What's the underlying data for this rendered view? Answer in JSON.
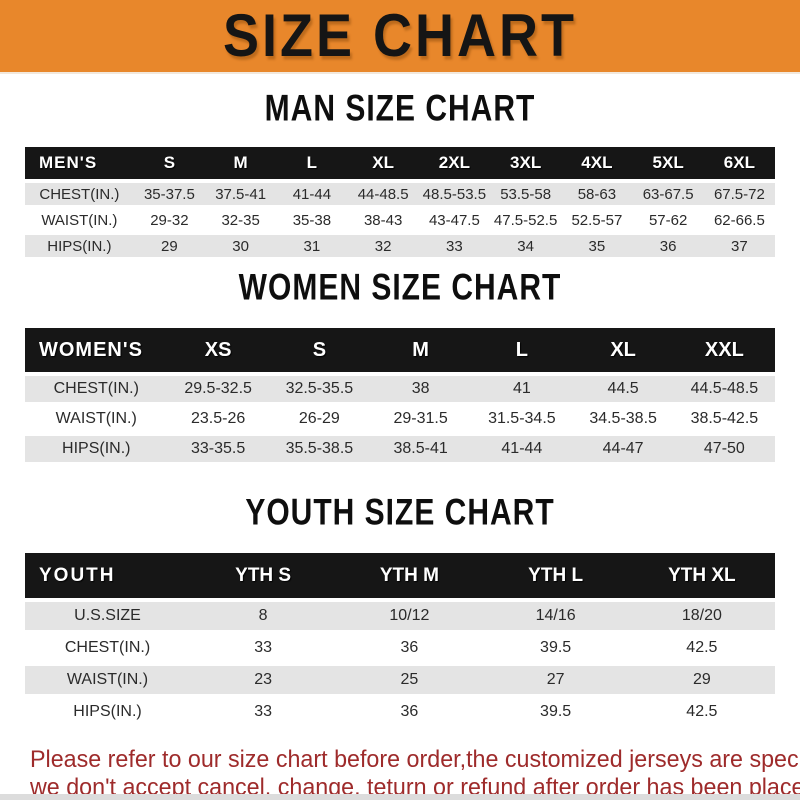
{
  "banner": {
    "title": "SIZE CHART",
    "bg_color": "#E8872B",
    "text_color": "#151515"
  },
  "colors": {
    "header_bar": "#161616",
    "row_gray": "#E4E4E4",
    "row_white": "#FFFFFF",
    "footer_red": "#9E2B2B"
  },
  "sections": [
    {
      "id": "men",
      "heading": "MAN SIZE CHART",
      "group_label": "MEN'S",
      "columns": [
        "S",
        "M",
        "L",
        "XL",
        "2XL",
        "3XL",
        "4XL",
        "5XL",
        "6XL"
      ],
      "rows": [
        {
          "label": "CHEST(IN.)",
          "values": [
            "35-37.5",
            "37.5-41",
            "41-44",
            "44-48.5",
            "48.5-53.5",
            "53.5-58",
            "58-63",
            "63-67.5",
            "67.5-72"
          ]
        },
        {
          "label": "WAIST(IN.)",
          "values": [
            "29-32",
            "32-35",
            "35-38",
            "38-43",
            "43-47.5",
            "47.5-52.5",
            "52.5-57",
            "57-62",
            "62-66.5"
          ]
        },
        {
          "label": "HIPS(IN.)",
          "values": [
            "29",
            "30",
            "31",
            "32",
            "33",
            "34",
            "35",
            "36",
            "37"
          ]
        }
      ]
    },
    {
      "id": "women",
      "heading": "WOMEN SIZE CHART",
      "group_label": "WOMEN'S",
      "columns": [
        "XS",
        "S",
        "M",
        "L",
        "XL",
        "XXL"
      ],
      "rows": [
        {
          "label": "CHEST(IN.)",
          "values": [
            "29.5-32.5",
            "32.5-35.5",
            "38",
            "41",
            "44.5",
            "44.5-48.5"
          ]
        },
        {
          "label": "WAIST(IN.)",
          "values": [
            "23.5-26",
            "26-29",
            "29-31.5",
            "31.5-34.5",
            "34.5-38.5",
            "38.5-42.5"
          ]
        },
        {
          "label": "HIPS(IN.)",
          "values": [
            "33-35.5",
            "35.5-38.5",
            "38.5-41",
            "41-44",
            "44-47",
            "47-50"
          ]
        }
      ]
    },
    {
      "id": "youth",
      "heading": "YOUTH SIZE CHART",
      "group_label": "YOUTH",
      "columns": [
        "YTH S",
        "YTH M",
        "YTH L",
        "YTH XL"
      ],
      "rows": [
        {
          "label": "U.S.SIZE",
          "values": [
            "8",
            "10/12",
            "14/16",
            "18/20"
          ]
        },
        {
          "label": "CHEST(IN.)",
          "values": [
            "33",
            "36",
            "39.5",
            "42.5"
          ]
        },
        {
          "label": "WAIST(IN.)",
          "values": [
            "23",
            "25",
            "27",
            "29"
          ]
        },
        {
          "label": "HIPS(IN.)",
          "values": [
            "33",
            "36",
            "39.5",
            "42.5"
          ]
        }
      ]
    }
  ],
  "footer": {
    "line1": "Please refer to our size chart before order,the customized jerseys are special products,",
    "line2": "we don't accept cancel, change, teturn or refund after order has been placed!"
  }
}
